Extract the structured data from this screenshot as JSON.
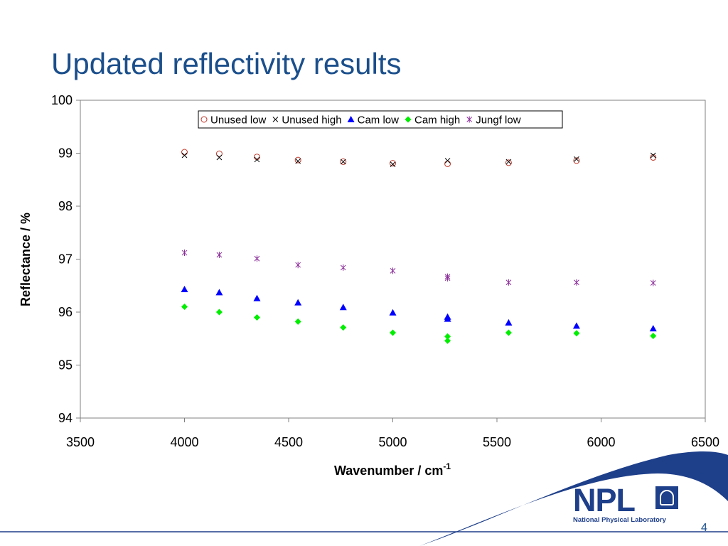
{
  "slide": {
    "title": "Updated reflectivity results",
    "page_number": "4",
    "logo": {
      "text": "NPL",
      "subtitle": "National Physical Laboratory"
    }
  },
  "colors": {
    "title": "#1b4f8c",
    "swoosh": "#1e3f8a",
    "logo": "#1e3f8a"
  },
  "chart_data": {
    "type": "scatter",
    "xlabel": "Wavenumber / cm",
    "xlabel_superscript": "-1",
    "ylabel": "Reflectance / %",
    "xlim": [
      3500,
      6500
    ],
    "ylim": [
      94,
      100
    ],
    "x_ticks": [
      "3500",
      "4000",
      "4500",
      "5000",
      "5500",
      "6000",
      "6500"
    ],
    "y_ticks": [
      "94",
      "95",
      "96",
      "97",
      "98",
      "99",
      "100"
    ],
    "grid": false,
    "legend_position": "top-center",
    "series": [
      {
        "name": "Unused low",
        "marker": "circle-open",
        "color": "#c0392b",
        "x": [
          4000,
          4167,
          4348,
          4545,
          4762,
          5000,
          5263,
          5556,
          5882,
          6250
        ],
        "y": [
          99.02,
          98.99,
          98.93,
          98.87,
          98.84,
          98.81,
          98.8,
          98.82,
          98.86,
          98.92
        ]
      },
      {
        "name": "Unused high",
        "marker": "x",
        "color": "#000000",
        "x": [
          4000,
          4167,
          4348,
          4545,
          4762,
          5000,
          5263,
          5556,
          5882,
          6250
        ],
        "y": [
          98.96,
          98.92,
          98.88,
          98.85,
          98.84,
          98.79,
          98.86,
          98.84,
          98.89,
          98.96
        ]
      },
      {
        "name": "Cam low",
        "marker": "triangle",
        "color": "#0000ff",
        "x": [
          4000,
          4167,
          4348,
          4545,
          4762,
          5000,
          5263,
          5263,
          5556,
          5882,
          6250
        ],
        "y": [
          96.43,
          96.37,
          96.26,
          96.18,
          96.09,
          95.99,
          95.91,
          95.87,
          95.8,
          95.74,
          95.69
        ]
      },
      {
        "name": "Cam high",
        "marker": "diamond",
        "color": "#00ee00",
        "x": [
          4000,
          4167,
          4348,
          4545,
          4762,
          5000,
          5263,
          5263,
          5556,
          5882,
          6250
        ],
        "y": [
          96.1,
          96.0,
          95.9,
          95.82,
          95.71,
          95.61,
          95.54,
          95.46,
          95.61,
          95.6,
          95.55
        ]
      },
      {
        "name": "Jungf low",
        "marker": "star",
        "color": "#8b2f9a",
        "x": [
          4000,
          4167,
          4348,
          4545,
          4762,
          5000,
          5263,
          5263,
          5556,
          5882,
          6250
        ],
        "y": [
          97.12,
          97.08,
          97.01,
          96.89,
          96.84,
          96.78,
          96.67,
          96.64,
          96.56,
          96.56,
          96.55
        ]
      }
    ]
  }
}
